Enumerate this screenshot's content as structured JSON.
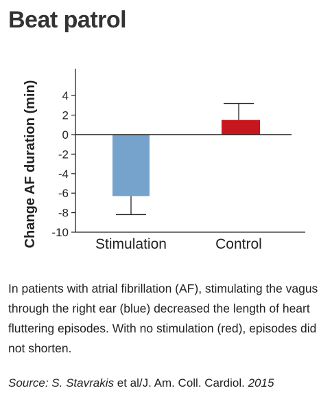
{
  "title": "Beat patrol",
  "chart_data": {
    "type": "bar",
    "ylabel": "Change AF duration (min)",
    "xlabel": "",
    "categories": [
      "Stimulation",
      "Control"
    ],
    "values": [
      -6.3,
      1.5
    ],
    "error_bars": [
      {
        "category": "Stimulation",
        "low": -8.2,
        "high": -6.3
      },
      {
        "category": "Control",
        "low": 1.5,
        "high": 3.2
      }
    ],
    "colors": [
      "#75a3cc",
      "#c8161d"
    ],
    "ylim": [
      -10,
      6
    ],
    "yticks": [
      4,
      2,
      0,
      -2,
      -4,
      -6,
      -8,
      -10
    ],
    "ytick_labels": [
      "4",
      "2",
      "0",
      "-2",
      "-4",
      "-6",
      "-8",
      "-10"
    ],
    "grid": false,
    "legend": "none"
  },
  "caption": "In patients with atrial fibrillation (AF), stimulating the vagus through the right ear (blue) decreased the length of heart fluttering episodes. With no stimulation (red), episodes did not shorten.",
  "source": {
    "prefix": "Source: S. Stavrakis",
    "middle": " et al/J. Am. Coll. Cardiol. ",
    "year": "2015"
  }
}
